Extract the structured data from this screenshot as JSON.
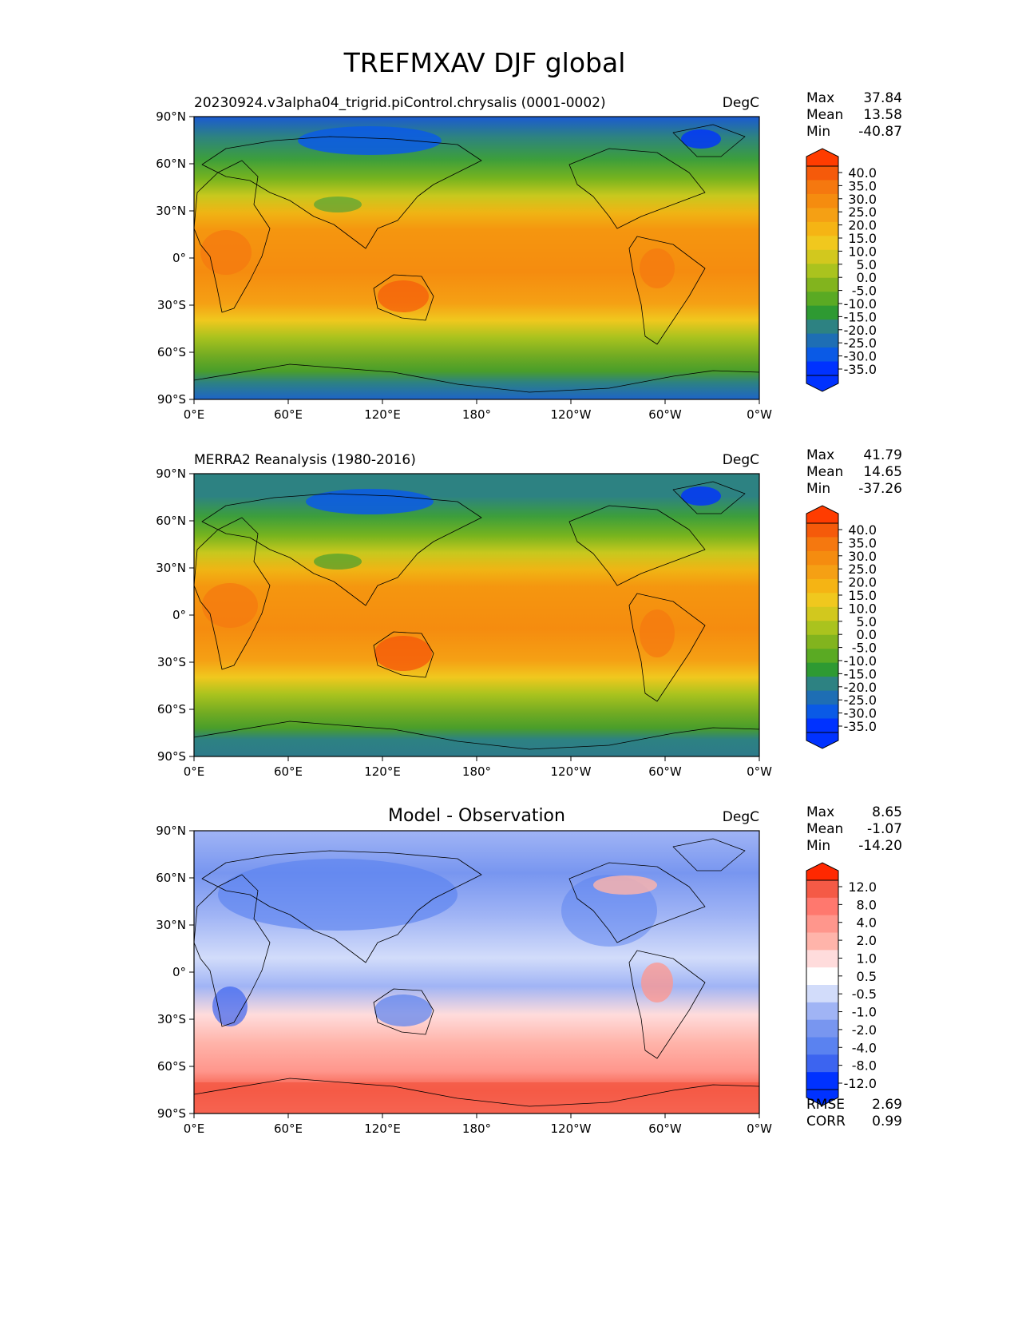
{
  "figure": {
    "title": "TREFMXAV DJF global"
  },
  "panels": [
    {
      "subtitle": "20230924.v3alpha04_trigrid.piControl.chrysalis (0001-0002)",
      "units": "DegC",
      "stats": [
        {
          "label": "Max",
          "value": "37.84"
        },
        {
          "label": "Mean",
          "value": "13.58"
        },
        {
          "label": "Min",
          "value": "-40.87"
        }
      ],
      "colorbar_ticks": [
        "40.0",
        "35.0",
        "30.0",
        "25.0",
        "20.0",
        "15.0",
        "10.0",
        "5.0",
        "0.0",
        "-5.0",
        "-10.0",
        "-15.0",
        "-20.0",
        "-25.0",
        "-30.0",
        "-35.0"
      ]
    },
    {
      "subtitle": "MERRA2 Reanalysis (1980-2016)",
      "units": "DegC",
      "stats": [
        {
          "label": "Max",
          "value": "41.79"
        },
        {
          "label": "Mean",
          "value": "14.65"
        },
        {
          "label": "Min",
          "value": "-37.26"
        }
      ],
      "colorbar_ticks": [
        "40.0",
        "35.0",
        "30.0",
        "25.0",
        "20.0",
        "15.0",
        "10.0",
        "5.0",
        "0.0",
        "-5.0",
        "-10.0",
        "-15.0",
        "-20.0",
        "-25.0",
        "-30.0",
        "-35.0"
      ]
    },
    {
      "title": "Model - Observation",
      "units": "DegC",
      "stats": [
        {
          "label": "Max",
          "value": "8.65"
        },
        {
          "label": "Mean",
          "value": "-1.07"
        },
        {
          "label": "Min",
          "value": "-14.20"
        }
      ],
      "colorbar_ticks": [
        "12.0",
        "8.0",
        "4.0",
        "2.0",
        "1.0",
        "0.5",
        "-0.5",
        "-1.0",
        "-2.0",
        "-4.0",
        "-8.0",
        "-12.0"
      ],
      "metrics": [
        {
          "label": "RMSE",
          "value": "2.69"
        },
        {
          "label": "CORR",
          "value": "0.99"
        }
      ]
    }
  ],
  "axes": {
    "lon_ticks": [
      "0°E",
      "60°E",
      "120°E",
      "180°",
      "120°W",
      "60°W",
      "0°W"
    ],
    "lat_ticks": [
      "90°N",
      "60°N",
      "30°N",
      "0°",
      "30°S",
      "60°S",
      "90°S"
    ]
  },
  "colors": {
    "temp_scale": [
      "#0032ff",
      "#0a5ae6",
      "#1e6eb4",
      "#2d8282",
      "#2e9a32",
      "#5aaa23",
      "#82b41e",
      "#aac31e",
      "#d2c81e",
      "#f0c81e",
      "#f5b414",
      "#f5a014",
      "#f58c0f",
      "#f5780f",
      "#f55a0a",
      "#ff3c00"
    ],
    "diff_scale": [
      "#0032ff",
      "#3c64f0",
      "#5a82f0",
      "#7896f0",
      "#a0b4f5",
      "#d2dcfa",
      "#ffffff",
      "#ffdcdc",
      "#ffb4aa",
      "#ff968c",
      "#ff786e",
      "#f55a46",
      "#ff2800"
    ]
  }
}
